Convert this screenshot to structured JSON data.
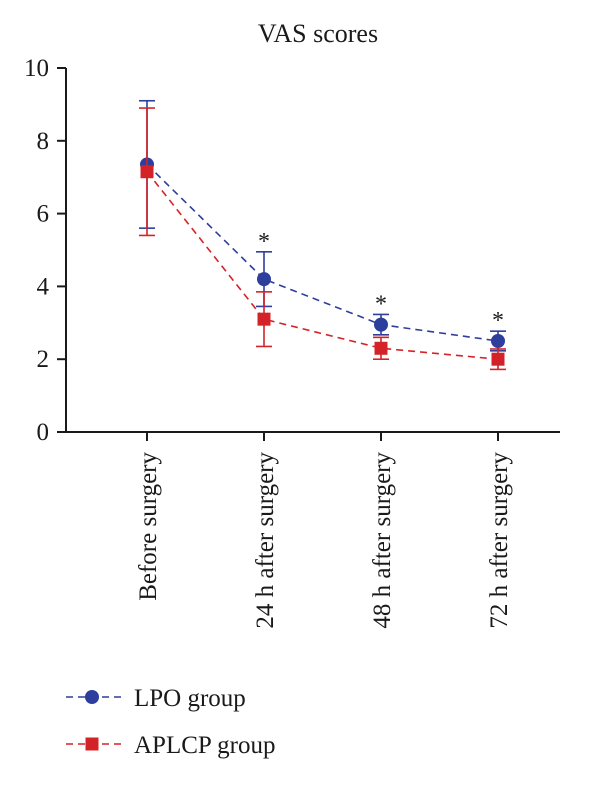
{
  "chart_data": {
    "type": "line",
    "title": "VAS scores",
    "xlabel": "",
    "ylabel": "",
    "ylim": [
      0,
      10
    ],
    "yticks": [
      0,
      2,
      4,
      6,
      8,
      10
    ],
    "grid": false,
    "legend_position": "bottom-left",
    "categories": [
      "Before surgery",
      "24 h after surgery",
      "48 h after surgery",
      "72 h after surgery"
    ],
    "series": [
      {
        "name": "LPO group",
        "color": "#2d3e9c",
        "marker": "circle",
        "values": [
          7.35,
          4.2,
          2.95,
          2.5
        ],
        "error": [
          1.75,
          0.75,
          0.28,
          0.27
        ]
      },
      {
        "name": "APLCP group",
        "color": "#d42328",
        "marker": "square",
        "values": [
          7.15,
          3.1,
          2.3,
          2.0
        ],
        "error": [
          1.75,
          0.75,
          0.3,
          0.28
        ]
      }
    ],
    "annotations": [
      {
        "category": "24 h after surgery",
        "text": "*"
      },
      {
        "category": "48 h after surgery",
        "text": "*"
      },
      {
        "category": "72 h after surgery",
        "text": "*"
      }
    ]
  }
}
